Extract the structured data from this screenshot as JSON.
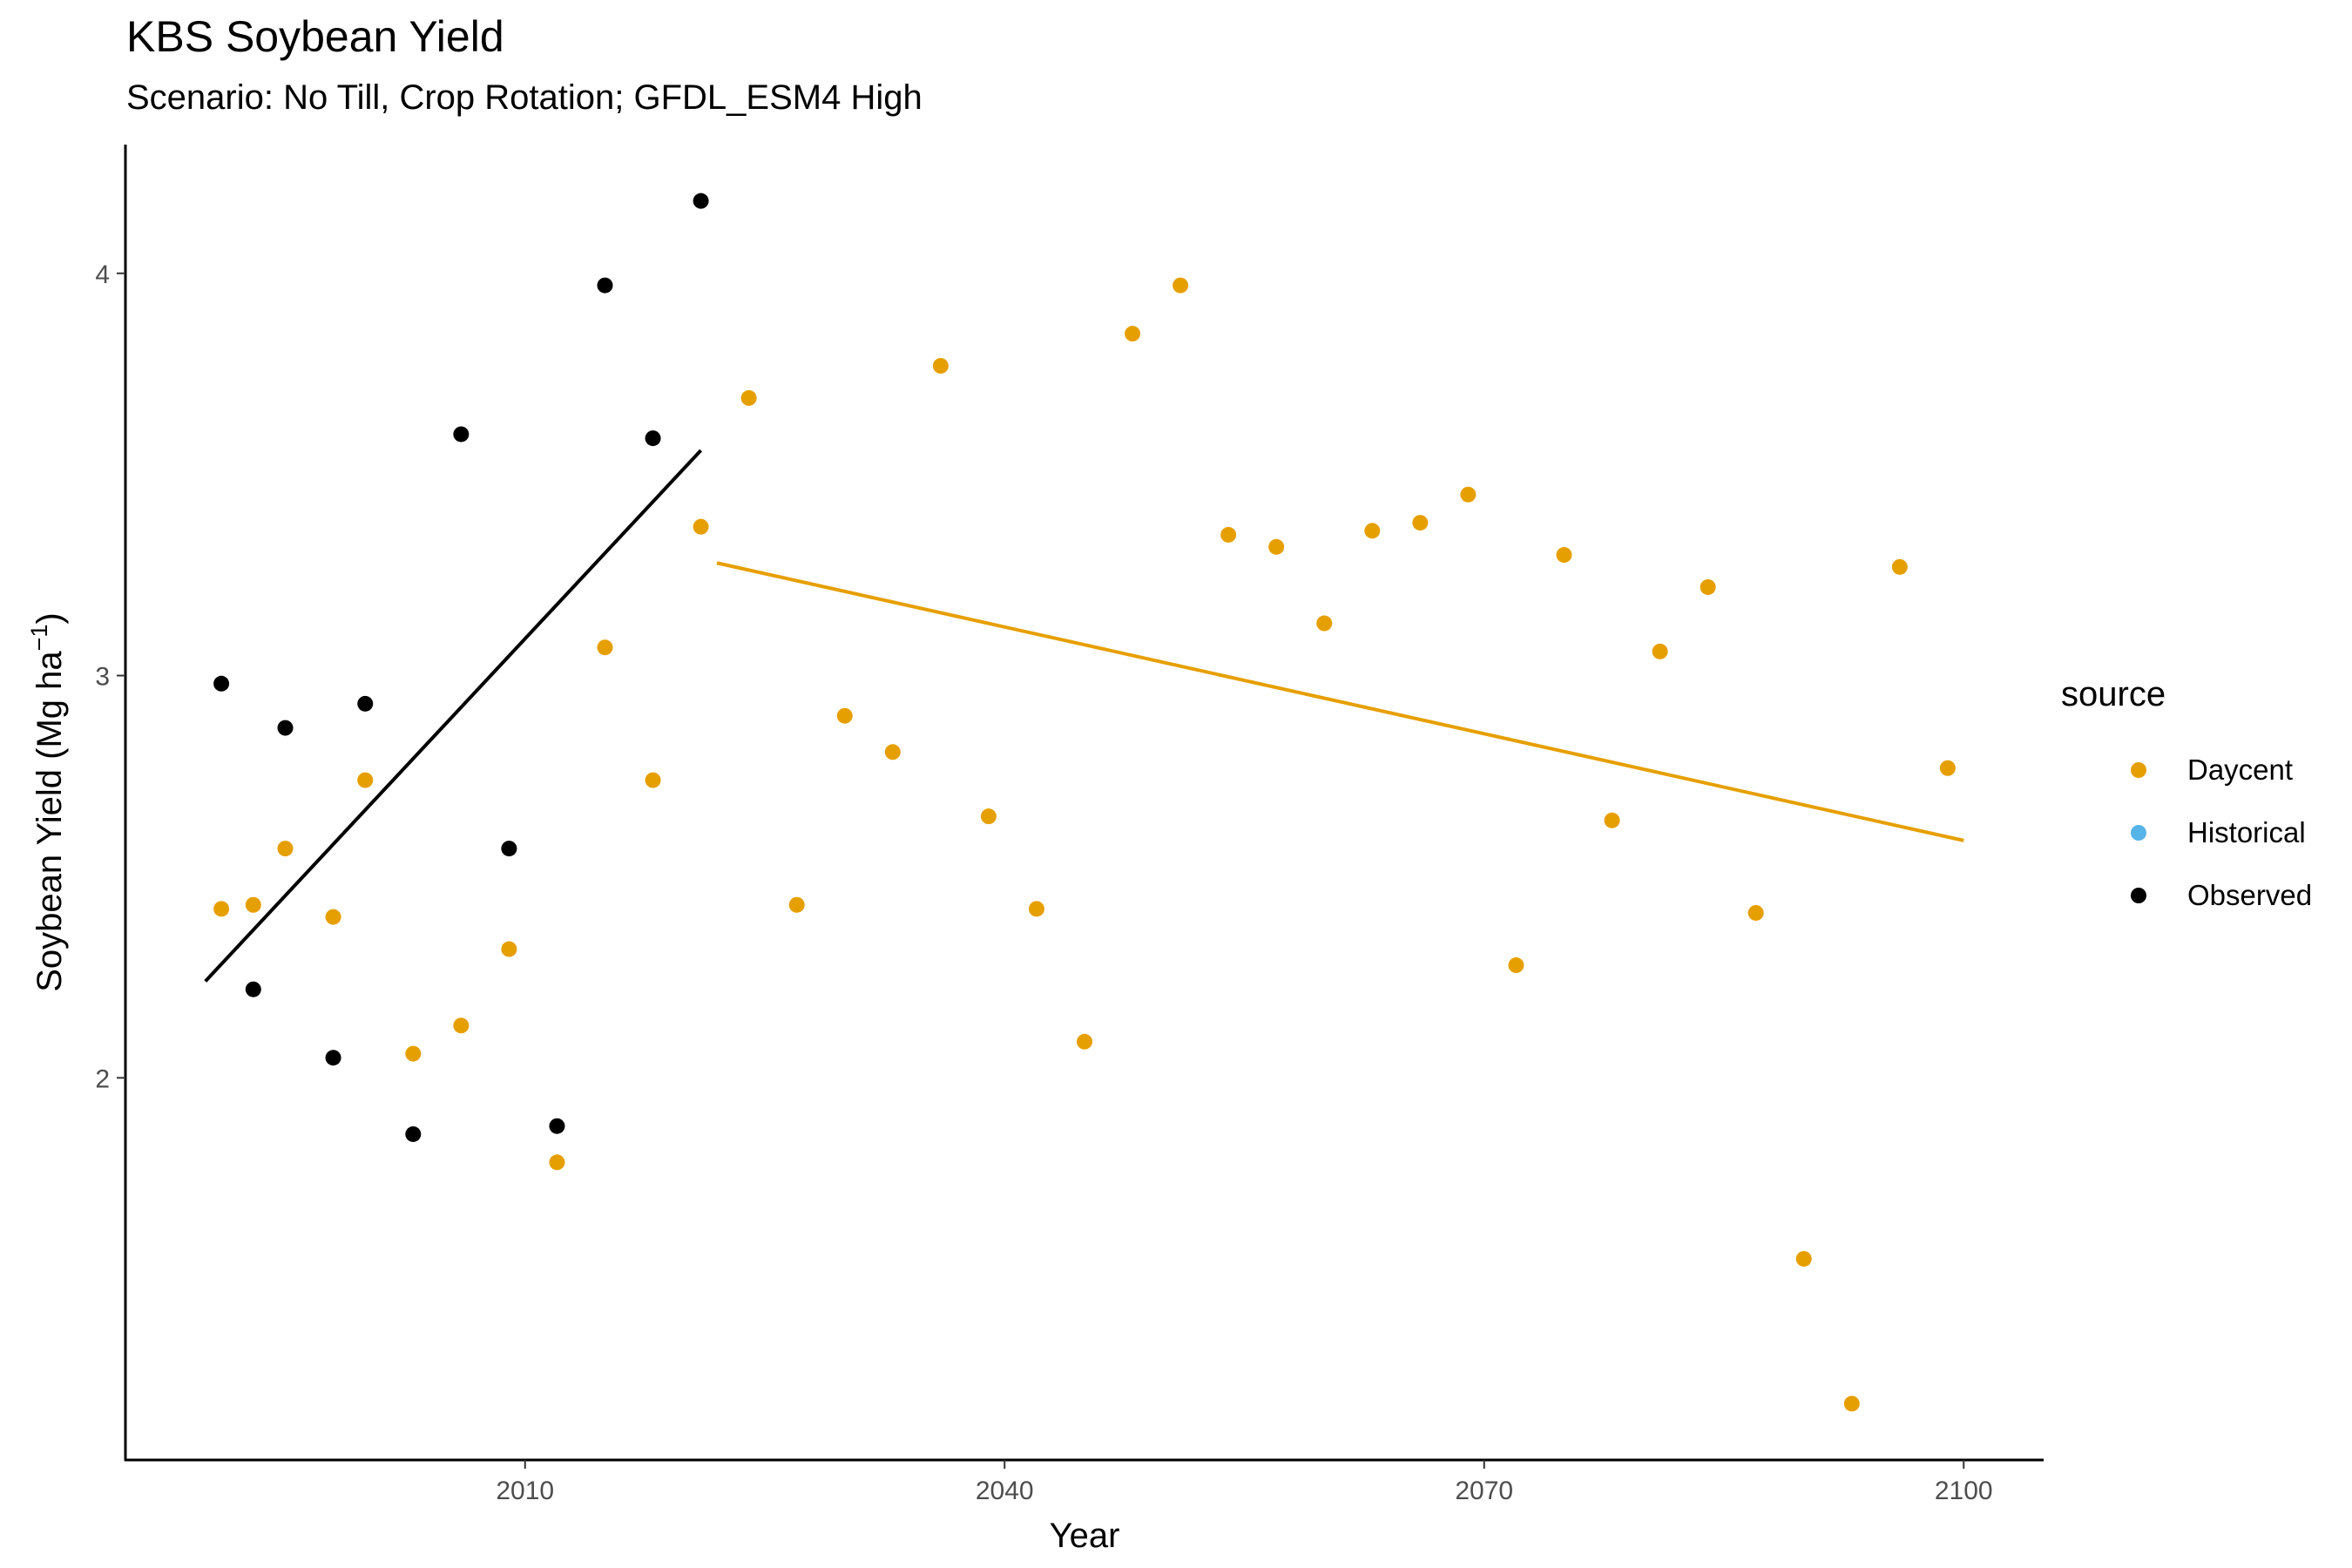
{
  "chart_data": {
    "type": "scatter",
    "title": "KBS Soybean Yield",
    "subtitle": "Scenario: No Till, Crop Rotation; GFDL_ESM4 High",
    "xlabel": "Year",
    "ylabel_main": "Soybean Yield (Mg ha",
    "ylabel_sup": "−1",
    "ylabel_end": ")",
    "xlim": [
      1985,
      2105
    ],
    "ylim": [
      1.05,
      4.32
    ],
    "x_ticks": [
      2010,
      2040,
      2070,
      2100
    ],
    "x_tick_labels": [
      "2010",
      "2040",
      "2070",
      "2100"
    ],
    "y_ticks": [
      2,
      3,
      4
    ],
    "y_tick_labels": [
      "2",
      "3",
      "4"
    ],
    "grid": false,
    "legend": {
      "title": "source",
      "position": "right",
      "entries": [
        {
          "label": "Daycent",
          "color": "#E69F00"
        },
        {
          "label": "Historical",
          "color": "#56B4E9"
        },
        {
          "label": "Observed",
          "color": "#000000"
        }
      ]
    },
    "series": [
      {
        "name": "Daycent",
        "color": "#E69F00",
        "points": [
          [
            1991,
            2.42
          ],
          [
            1993,
            2.43
          ],
          [
            1995,
            2.57
          ],
          [
            1998,
            2.4
          ],
          [
            2000,
            2.74
          ],
          [
            2003,
            2.06
          ],
          [
            2006,
            2.13
          ],
          [
            2009,
            2.32
          ],
          [
            2012,
            1.79
          ],
          [
            2015,
            3.07
          ],
          [
            2018,
            2.74
          ],
          [
            2021,
            3.37
          ],
          [
            2024,
            3.69
          ],
          [
            2027,
            2.43
          ],
          [
            2030,
            2.9
          ],
          [
            2033,
            2.81
          ],
          [
            2036,
            3.77
          ],
          [
            2039,
            2.65
          ],
          [
            2042,
            2.42
          ],
          [
            2045,
            2.09
          ],
          [
            2048,
            3.85
          ],
          [
            2051,
            3.97
          ],
          [
            2054,
            3.35
          ],
          [
            2057,
            3.32
          ],
          [
            2060,
            3.13
          ],
          [
            2063,
            3.36
          ],
          [
            2066,
            3.38
          ],
          [
            2069,
            3.45
          ],
          [
            2072,
            2.28
          ],
          [
            2075,
            3.3
          ],
          [
            2078,
            2.64
          ],
          [
            2081,
            3.06
          ],
          [
            2084,
            3.22
          ],
          [
            2087,
            2.41
          ],
          [
            2090,
            1.55
          ],
          [
            2093,
            1.19
          ],
          [
            2096,
            3.27
          ],
          [
            2099,
            2.77
          ]
        ]
      },
      {
        "name": "Historical",
        "color": "#56B4E9",
        "points": []
      },
      {
        "name": "Observed",
        "color": "#000000",
        "points": [
          [
            1991,
            2.98
          ],
          [
            1993,
            2.22
          ],
          [
            1995,
            2.87
          ],
          [
            1998,
            2.05
          ],
          [
            2000,
            2.93
          ],
          [
            2003,
            1.86
          ],
          [
            2006,
            3.6
          ],
          [
            2009,
            2.57
          ],
          [
            2012,
            1.88
          ],
          [
            2015,
            3.97
          ],
          [
            2018,
            3.59
          ],
          [
            2021,
            4.18
          ]
        ]
      }
    ],
    "trend_lines": [
      {
        "series": "Observed",
        "color": "#000000",
        "x": [
          1990,
          2021
        ],
        "y": [
          2.24,
          3.56
        ]
      },
      {
        "series": "Daycent",
        "color": "#E69F00",
        "x": [
          2022,
          2100
        ],
        "y": [
          3.28,
          2.59
        ]
      }
    ]
  }
}
